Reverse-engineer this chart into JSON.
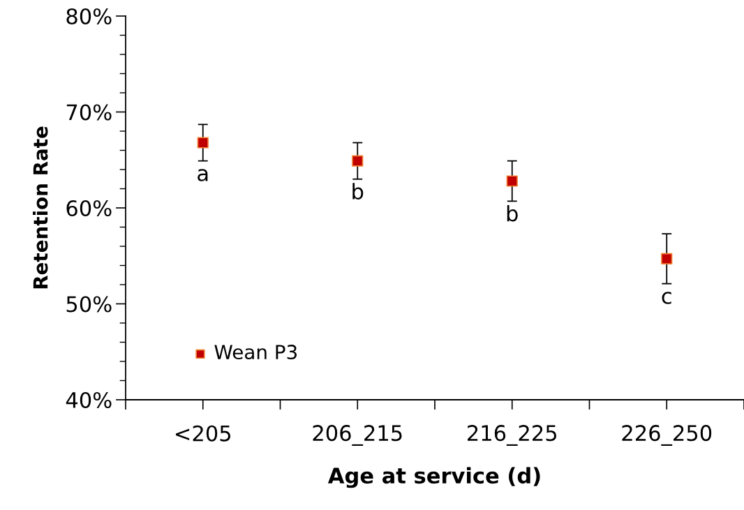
{
  "chart_data": {
    "type": "scatter",
    "xlabel": "Age at service (d)",
    "ylabel": "Retention Rate",
    "categories": [
      "<205",
      "206_215",
      "216_225",
      "226_250"
    ],
    "series": [
      {
        "name": "Wean P3",
        "color": "#c00000",
        "values": [
          66.8,
          64.9,
          62.8,
          54.7
        ],
        "errors": [
          1.9,
          1.9,
          2.1,
          2.6
        ]
      }
    ],
    "ylim": [
      40,
      80
    ],
    "yticks": [
      {
        "value": 40,
        "label": "40%"
      },
      {
        "value": 42,
        "label": null
      },
      {
        "value": 44,
        "label": null
      },
      {
        "value": 46,
        "label": null
      },
      {
        "value": 48,
        "label": null
      },
      {
        "value": 50,
        "label": "50%"
      },
      {
        "value": 52,
        "label": null
      },
      {
        "value": 54,
        "label": null
      },
      {
        "value": 56,
        "label": null
      },
      {
        "value": 58,
        "label": null
      },
      {
        "value": 60,
        "label": "60%"
      },
      {
        "value": 62,
        "label": null
      },
      {
        "value": 64,
        "label": null
      },
      {
        "value": 66,
        "label": null
      },
      {
        "value": 68,
        "label": null
      },
      {
        "value": 70,
        "label": "70%"
      },
      {
        "value": 72,
        "label": null
      },
      {
        "value": 74,
        "label": null
      },
      {
        "value": 76,
        "label": null
      },
      {
        "value": 78,
        "label": null
      },
      {
        "value": 80,
        "label": "80%"
      }
    ],
    "annotations": [
      {
        "text": "a",
        "x": "<205",
        "y": 64.9
      },
      {
        "text": "b",
        "x": "206_215",
        "y": 63.0
      },
      {
        "text": "b",
        "x": "216_225",
        "y": 60.7
      },
      {
        "text": "c",
        "x": "226_250",
        "y": 52.1
      }
    ],
    "marker": "square",
    "legend": "bottom left",
    "grid": false
  }
}
